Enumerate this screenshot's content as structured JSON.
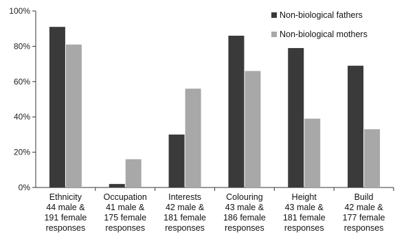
{
  "chart_data": {
    "type": "bar",
    "title": "",
    "xlabel": "",
    "ylabel": "",
    "ylim": [
      0,
      100
    ],
    "yticks": [
      "0%",
      "20%",
      "40%",
      "60%",
      "80%",
      "100%"
    ],
    "ytick_values": [
      0,
      20,
      40,
      60,
      80,
      100
    ],
    "categories": [
      [
        "Ethnicity",
        "44 male &",
        "191 female",
        "responses"
      ],
      [
        "Occupation",
        "41 male &",
        "175 female",
        "responses"
      ],
      [
        "Interests",
        "42 male &",
        "181 female",
        "responses"
      ],
      [
        "Colouring",
        "43 male &",
        "186 female",
        "responses"
      ],
      [
        "Height",
        "43 male &",
        "181 female",
        "responses"
      ],
      [
        "Build",
        "42 male &",
        "177 female",
        "responses"
      ]
    ],
    "series": [
      {
        "name": "Non-biological fathers",
        "color": "#3a3a3a",
        "values": [
          91,
          2,
          30,
          86,
          79,
          69
        ]
      },
      {
        "name": "Non-biological mothers",
        "color": "#a8a8a8",
        "values": [
          81,
          16,
          56,
          66,
          39,
          33
        ]
      }
    ],
    "legend_position": "top-right",
    "grid": false
  }
}
